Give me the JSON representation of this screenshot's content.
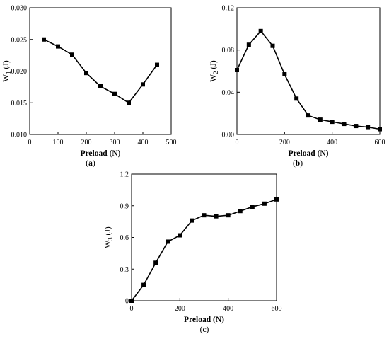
{
  "chart_data": [
    {
      "type": "line",
      "panel_label": "(a)",
      "xlabel": "Preload (N)",
      "ylabel_main": "W",
      "ylabel_sub": "1",
      "ylabel_unit": " (J)",
      "xlim": [
        0,
        500
      ],
      "ylim": [
        0.01,
        0.03
      ],
      "xticks": [
        0,
        100,
        200,
        300,
        400,
        500
      ],
      "yticks": [
        0.01,
        0.015,
        0.02,
        0.025,
        0.03
      ],
      "xtick_labels": [
        "0",
        "100",
        "200",
        "300",
        "400",
        "500"
      ],
      "ytick_labels": [
        "0.010",
        "0.015",
        "0.020",
        "0.025",
        "0.030"
      ],
      "grid": false,
      "series": [
        {
          "x": [
            50,
            100,
            150,
            200,
            250,
            300,
            350,
            400,
            450
          ],
          "y": [
            0.025,
            0.0239,
            0.0226,
            0.0197,
            0.0176,
            0.0164,
            0.015,
            0.0179,
            0.021
          ]
        }
      ]
    },
    {
      "type": "line",
      "panel_label": "(b)",
      "xlabel": "Preload (N)",
      "ylabel_main": "W",
      "ylabel_sub": "2",
      "ylabel_unit": " (J)",
      "xlim": [
        0,
        600
      ],
      "ylim": [
        0,
        0.12
      ],
      "xticks": [
        0,
        200,
        400,
        600
      ],
      "yticks": [
        0.0,
        0.04,
        0.08,
        0.12
      ],
      "xtick_labels": [
        "0",
        "200",
        "400",
        "600"
      ],
      "ytick_labels": [
        "0.00",
        "0.04",
        "0.08",
        "0.12"
      ],
      "grid": false,
      "series": [
        {
          "x": [
            0,
            50,
            100,
            150,
            200,
            250,
            300,
            350,
            400,
            450,
            500,
            550,
            600
          ],
          "y": [
            0.061,
            0.085,
            0.098,
            0.084,
            0.057,
            0.034,
            0.018,
            0.014,
            0.012,
            0.01,
            0.008,
            0.007,
            0.005
          ]
        }
      ]
    },
    {
      "type": "line",
      "panel_label": "(c)",
      "xlabel": "Preload (N)",
      "ylabel_main": "W",
      "ylabel_sub": "3",
      "ylabel_unit": " (J)",
      "xlim": [
        0,
        600
      ],
      "ylim": [
        0,
        1.2
      ],
      "xticks": [
        0,
        200,
        400,
        600
      ],
      "yticks": [
        0,
        0.3,
        0.6,
        0.9,
        1.2
      ],
      "xtick_labels": [
        "0",
        "200",
        "400",
        "600"
      ],
      "ytick_labels": [
        "0",
        "0.3",
        "0.6",
        "0.9",
        "1.2"
      ],
      "grid": false,
      "series": [
        {
          "x": [
            0,
            50,
            100,
            150,
            200,
            250,
            300,
            350,
            400,
            450,
            500,
            550,
            600
          ],
          "y": [
            0,
            0.15,
            0.36,
            0.56,
            0.62,
            0.76,
            0.81,
            0.8,
            0.81,
            0.85,
            0.89,
            0.92,
            0.96
          ]
        }
      ]
    }
  ]
}
